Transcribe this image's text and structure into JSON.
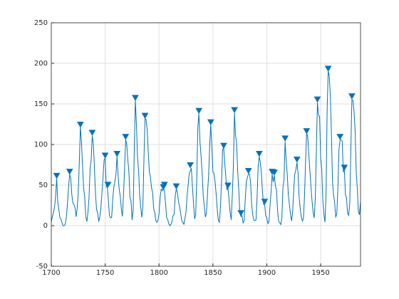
{
  "chart_data": {
    "type": "line",
    "x": [
      1700,
      1701,
      1702,
      1703,
      1704,
      1705,
      1706,
      1707,
      1708,
      1709,
      1710,
      1711,
      1712,
      1713,
      1714,
      1715,
      1716,
      1717,
      1718,
      1719,
      1720,
      1721,
      1722,
      1723,
      1724,
      1725,
      1726,
      1727,
      1728,
      1729,
      1730,
      1731,
      1732,
      1733,
      1734,
      1735,
      1736,
      1737,
      1738,
      1739,
      1740,
      1741,
      1742,
      1743,
      1744,
      1745,
      1746,
      1747,
      1748,
      1749,
      1750,
      1751,
      1752,
      1753,
      1754,
      1755,
      1756,
      1757,
      1758,
      1759,
      1760,
      1761,
      1762,
      1763,
      1764,
      1765,
      1766,
      1767,
      1768,
      1769,
      1770,
      1771,
      1772,
      1773,
      1774,
      1775,
      1776,
      1777,
      1778,
      1779,
      1780,
      1781,
      1782,
      1783,
      1784,
      1785,
      1786,
      1787,
      1788,
      1789,
      1790,
      1791,
      1792,
      1793,
      1794,
      1795,
      1796,
      1797,
      1798,
      1799,
      1800,
      1801,
      1802,
      1803,
      1804,
      1805,
      1806,
      1807,
      1808,
      1809,
      1810,
      1811,
      1812,
      1813,
      1814,
      1815,
      1816,
      1817,
      1818,
      1819,
      1820,
      1821,
      1822,
      1823,
      1824,
      1825,
      1826,
      1827,
      1828,
      1829,
      1830,
      1831,
      1832,
      1833,
      1834,
      1835,
      1836,
      1837,
      1838,
      1839,
      1840,
      1841,
      1842,
      1843,
      1844,
      1845,
      1846,
      1847,
      1848,
      1849,
      1850,
      1851,
      1852,
      1853,
      1854,
      1855,
      1856,
      1857,
      1858,
      1859,
      1860,
      1861,
      1862,
      1863,
      1864,
      1865,
      1866,
      1867,
      1868,
      1869,
      1870,
      1871,
      1872,
      1873,
      1874,
      1875,
      1876,
      1877,
      1878,
      1879,
      1880,
      1881,
      1882,
      1883,
      1884,
      1885,
      1886,
      1887,
      1888,
      1889,
      1890,
      1891,
      1892,
      1893,
      1894,
      1895,
      1896,
      1897,
      1898,
      1899,
      1900,
      1901,
      1902,
      1903,
      1904,
      1905,
      1906,
      1907,
      1908,
      1909,
      1910,
      1911,
      1912,
      1913,
      1914,
      1915,
      1916,
      1917,
      1918,
      1919,
      1920,
      1921,
      1922,
      1923,
      1924,
      1925,
      1926,
      1927,
      1928,
      1929,
      1930,
      1931,
      1932,
      1933,
      1934,
      1935,
      1936,
      1937,
      1938,
      1939,
      1940,
      1941,
      1942,
      1943,
      1944,
      1945,
      1946,
      1947,
      1948,
      1949,
      1950,
      1951,
      1952,
      1953,
      1954,
      1955,
      1956,
      1957,
      1958,
      1959,
      1960,
      1961,
      1962,
      1963,
      1964,
      1965,
      1966,
      1967,
      1968,
      1969,
      1970,
      1971,
      1972,
      1973,
      1974,
      1975,
      1976,
      1977,
      1978,
      1979,
      1980,
      1981,
      1982,
      1983,
      1984,
      1985,
      1986,
      1987
    ],
    "series": [
      {
        "color": "#0072bd",
        "values": [
          5,
          11,
          16,
          23,
          36,
          58,
          29,
          20,
          10,
          8,
          3,
          0,
          0,
          2,
          11,
          27,
          47,
          63,
          60,
          39,
          28,
          26,
          22,
          11,
          21,
          40,
          78,
          122,
          103,
          73,
          47,
          35,
          11,
          5,
          16,
          34,
          70,
          81,
          111,
          101,
          73,
          40,
          20,
          16,
          5,
          11,
          22,
          40,
          60,
          80.9,
          83.4,
          47.7,
          47.8,
          30.7,
          12.2,
          9.6,
          10.2,
          32.4,
          47.6,
          54.0,
          62.9,
          85.9,
          61.2,
          45.1,
          36.4,
          20.9,
          11.4,
          37.8,
          69.8,
          106.1,
          100.8,
          81.6,
          66.5,
          34.8,
          30.6,
          7.0,
          19.8,
          92.5,
          154.4,
          125.9,
          84.8,
          68.1,
          38.5,
          22.8,
          10.2,
          24.1,
          82.9,
          132.0,
          130.9,
          118.1,
          89.9,
          66.6,
          60.0,
          46.9,
          41.0,
          21.3,
          16.0,
          6.4,
          4.1,
          6.8,
          14.5,
          34.0,
          45.0,
          43.1,
          47.5,
          42.2,
          28.1,
          10.1,
          8.1,
          2.5,
          0.0,
          1.4,
          5.0,
          12.2,
          13.9,
          35.4,
          45.8,
          41.1,
          30.1,
          23.9,
          15.6,
          6.6,
          4.0,
          1.8,
          8.5,
          16.6,
          36.3,
          49.6,
          64.2,
          67.0,
          70.9,
          47.8,
          27.5,
          8.5,
          13.2,
          56.9,
          121.5,
          138.3,
          103.2,
          85.7,
          64.6,
          36.7,
          24.2,
          10.7,
          15.0,
          40.1,
          61.5,
          98.5,
          124.7,
          96.3,
          66.6,
          64.5,
          54.1,
          39.0,
          20.6,
          6.7,
          4.3,
          22.7,
          54.8,
          93.8,
          95.8,
          77.2,
          59.1,
          44.0,
          47.0,
          30.5,
          16.3,
          7.3,
          37.6,
          74.0,
          139.0,
          111.2,
          101.6,
          66.2,
          44.7,
          17.0,
          11.3,
          12.4,
          3.4,
          6.0,
          32.3,
          54.3,
          59.7,
          63.7,
          63.5,
          52.2,
          25.4,
          13.1,
          6.8,
          6.3,
          7.1,
          35.6,
          73.0,
          85.1,
          78.0,
          64.0,
          41.8,
          26.2,
          26.7,
          12.1,
          9.5,
          2.7,
          5.0,
          24.4,
          42.0,
          63.5,
          53.8,
          62.0,
          48.5,
          43.9,
          18.6,
          5.7,
          3.6,
          1.4,
          9.6,
          47.4,
          57.1,
          103.9,
          80.6,
          63.6,
          37.6,
          26.1,
          14.2,
          5.8,
          16.7,
          44.3,
          63.9,
          69.0,
          77.8,
          64.9,
          35.7,
          21.2,
          11.1,
          5.7,
          8.7,
          36.1,
          79.7,
          114.4,
          109.6,
          88.8,
          67.8,
          47.5,
          30.6,
          16.3,
          9.6,
          33.2,
          92.6,
          151.6,
          136.3,
          134.7,
          83.9,
          69.4,
          31.5,
          13.9,
          4.4,
          38.0,
          141.7,
          190.2,
          184.8,
          159.0,
          112.3,
          53.9,
          37.5,
          27.9,
          10.2,
          15.1,
          47.0,
          93.8,
          105.9,
          105.5,
          104.5,
          66.6,
          68.9,
          38.0,
          34.5,
          15.5,
          12.6,
          27.5,
          92.5,
          155.4,
          154.6,
          140.4,
          115.9,
          66.6,
          45.9,
          17.9,
          13.4,
          29.2
        ]
      }
    ],
    "peaks": {
      "color": "#0072bd",
      "x": [
        1705,
        1717,
        1727,
        1738,
        1750,
        1752.6,
        1761,
        1769,
        1778,
        1787,
        1804,
        1805,
        1816,
        1829,
        1837,
        1848,
        1860,
        1864,
        1870,
        1876,
        1883,
        1893,
        1898,
        1905,
        1907,
        1917,
        1928,
        1937,
        1947,
        1957,
        1968,
        1972,
        1979
      ],
      "values": [
        62,
        67,
        125,
        115,
        87,
        51,
        89,
        110,
        158,
        136,
        48,
        51,
        49,
        75,
        142,
        128,
        99,
        50,
        143,
        16,
        68,
        89,
        30,
        67,
        66,
        108,
        82,
        117,
        156,
        194,
        110,
        72,
        160
      ]
    },
    "xlim": [
      1700,
      1987
    ],
    "ylim": [
      -50,
      250
    ],
    "xticks": [
      1700,
      1750,
      1800,
      1850,
      1900,
      1950
    ],
    "yticks": [
      -50,
      0,
      50,
      100,
      150,
      200,
      250
    ],
    "grid": true
  }
}
